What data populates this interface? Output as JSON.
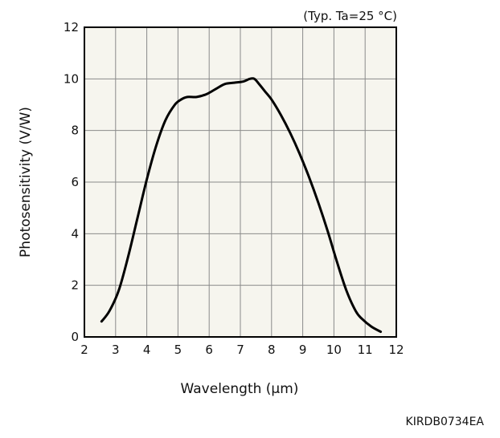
{
  "chart_data": {
    "type": "line",
    "note": "(Typ. Ta=25 °C)",
    "xlabel": "Wavelength (μm)",
    "ylabel": "Photosensitivity (V/W)",
    "xlim": [
      2,
      12
    ],
    "ylim": [
      0,
      12
    ],
    "xticks": [
      "2",
      "3",
      "4",
      "5",
      "6",
      "7",
      "8",
      "9",
      "10",
      "11",
      "12"
    ],
    "yticks": [
      "0",
      "2",
      "4",
      "6",
      "8",
      "10",
      "12"
    ],
    "grid": true,
    "background_color": "#f6f5ee",
    "line_color": "#000000",
    "series": [
      {
        "x": [
          2.55,
          2.8,
          3.1,
          3.4,
          3.7,
          4.0,
          4.3,
          4.6,
          4.9,
          5.1,
          5.3,
          5.6,
          5.9,
          6.2,
          6.5,
          6.8,
          7.1,
          7.3,
          7.45,
          7.6,
          7.8,
          8.0,
          8.3,
          8.6,
          8.9,
          9.2,
          9.5,
          9.8,
          10.1,
          10.4,
          10.7,
          10.9,
          11.2,
          11.5
        ],
        "y": [
          0.6,
          1.0,
          1.8,
          3.1,
          4.6,
          6.1,
          7.4,
          8.4,
          9.0,
          9.2,
          9.3,
          9.3,
          9.4,
          9.6,
          9.8,
          9.85,
          9.9,
          10.0,
          10.0,
          9.8,
          9.5,
          9.2,
          8.6,
          7.9,
          7.1,
          6.2,
          5.2,
          4.1,
          2.9,
          1.8,
          1.0,
          0.7,
          0.4,
          0.2
        ]
      }
    ]
  },
  "document_code": "KIRDB0734EA"
}
